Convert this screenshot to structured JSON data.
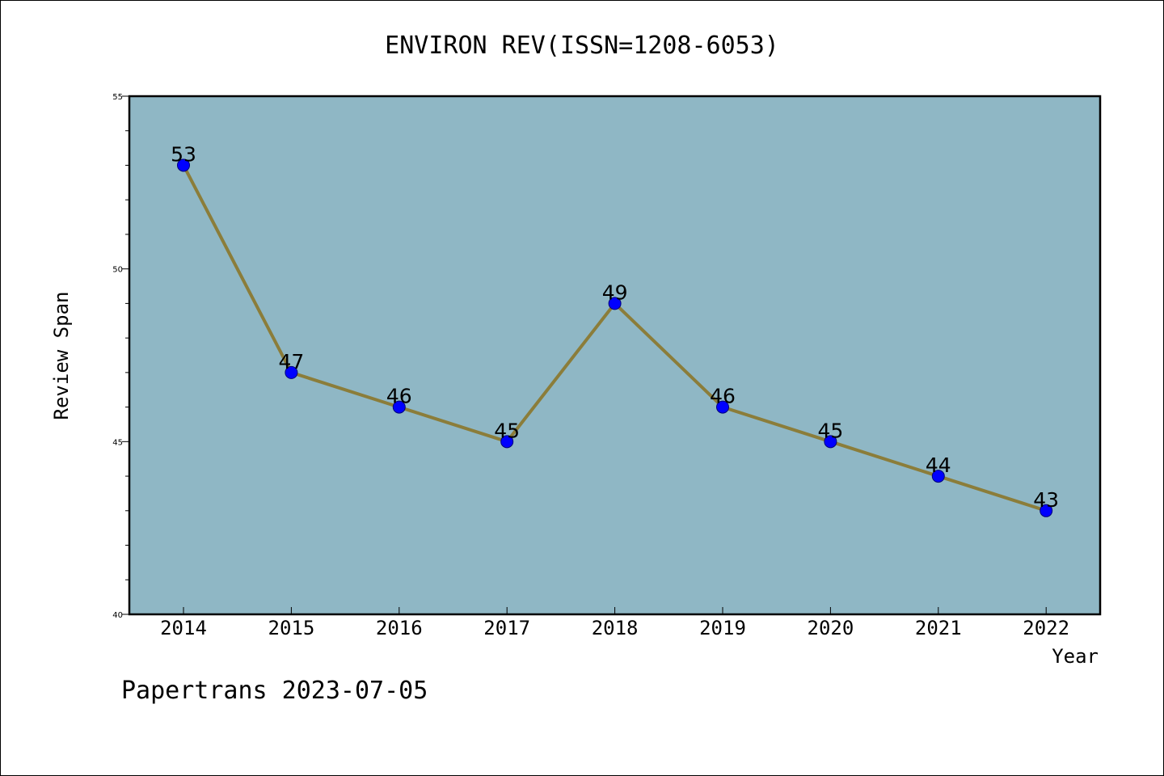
{
  "chart_data": {
    "type": "line",
    "title": "ENVIRON REV(ISSN=1208-6053)",
    "xlabel": "Year",
    "ylabel": "Review Span",
    "x": [
      "2014",
      "2015",
      "2016",
      "2017",
      "2018",
      "2019",
      "2020",
      "2021",
      "2022"
    ],
    "values": [
      53,
      47,
      46,
      45,
      49,
      46,
      45,
      44,
      43
    ],
    "data_labels": [
      "53",
      "47",
      "46",
      "45",
      "49",
      "46",
      "45",
      "44",
      "43"
    ],
    "ylim": [
      40,
      55
    ],
    "yticks": [
      "40",
      "45",
      "50",
      "55"
    ],
    "grid": false,
    "legend": "none",
    "colors": {
      "plot_background": "#8fb7c5",
      "line": "#8b7d3a",
      "marker": "#0000ff"
    }
  },
  "footer": "Papertrans 2023-07-05"
}
